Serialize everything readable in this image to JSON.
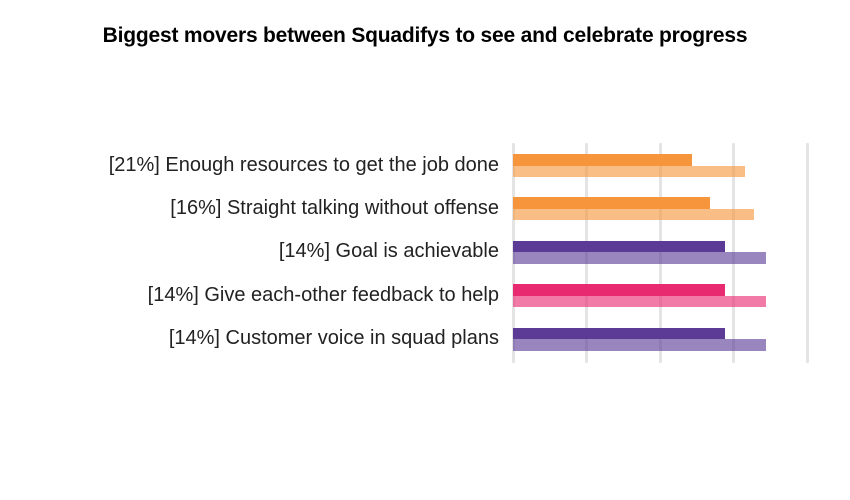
{
  "chart_data": {
    "type": "bar",
    "orientation": "horizontal",
    "title": "Biggest movers between Squadifys to see and celebrate progress",
    "xlabel": "",
    "ylabel": "",
    "xlim": [
      0,
      100
    ],
    "gridlines_at": [
      0,
      25,
      50,
      75,
      100
    ],
    "tick_labels_visible": false,
    "legend": "none",
    "categories": [
      "[21%] Enough resources to get the job done",
      "[16%] Straight talking without offense",
      "[14%] Goal is achievable",
      "[14%] Give each-other feedback to help",
      "[14%] Customer voice in squad plans"
    ],
    "series": [
      {
        "name": "dark_bar",
        "values": [
          61,
          67,
          72,
          72,
          72
        ]
      },
      {
        "name": "light_bar",
        "values": [
          79,
          82,
          86,
          86,
          86
        ]
      }
    ],
    "rows": [
      {
        "label": "[21%] Enough resources to get the job done",
        "change_pct": 21,
        "color": "#F6953C",
        "dark_value": 61,
        "light_value": 79
      },
      {
        "label": "[16%] Straight talking without offense",
        "change_pct": 16,
        "color": "#F6953C",
        "dark_value": 67,
        "light_value": 82
      },
      {
        "label": "[14%] Goal is achievable",
        "change_pct": 14,
        "color": "#5C3B97",
        "dark_value": 72,
        "light_value": 86
      },
      {
        "label": "[14%] Give each-other feedback to help",
        "change_pct": 14,
        "color": "#E82A70",
        "dark_value": 72,
        "light_value": 86
      },
      {
        "label": "[14%] Customer voice in squad plans",
        "change_pct": 14,
        "color": "#5C3B97",
        "dark_value": 72,
        "light_value": 86
      }
    ]
  },
  "colors": {
    "background": "#FFFFFF",
    "title_text": "#000000",
    "label_text": "#222222",
    "gridline": "#E4E4E4",
    "orange": "#F6953C",
    "purple": "#5C3B97",
    "pink": "#E82A70"
  }
}
